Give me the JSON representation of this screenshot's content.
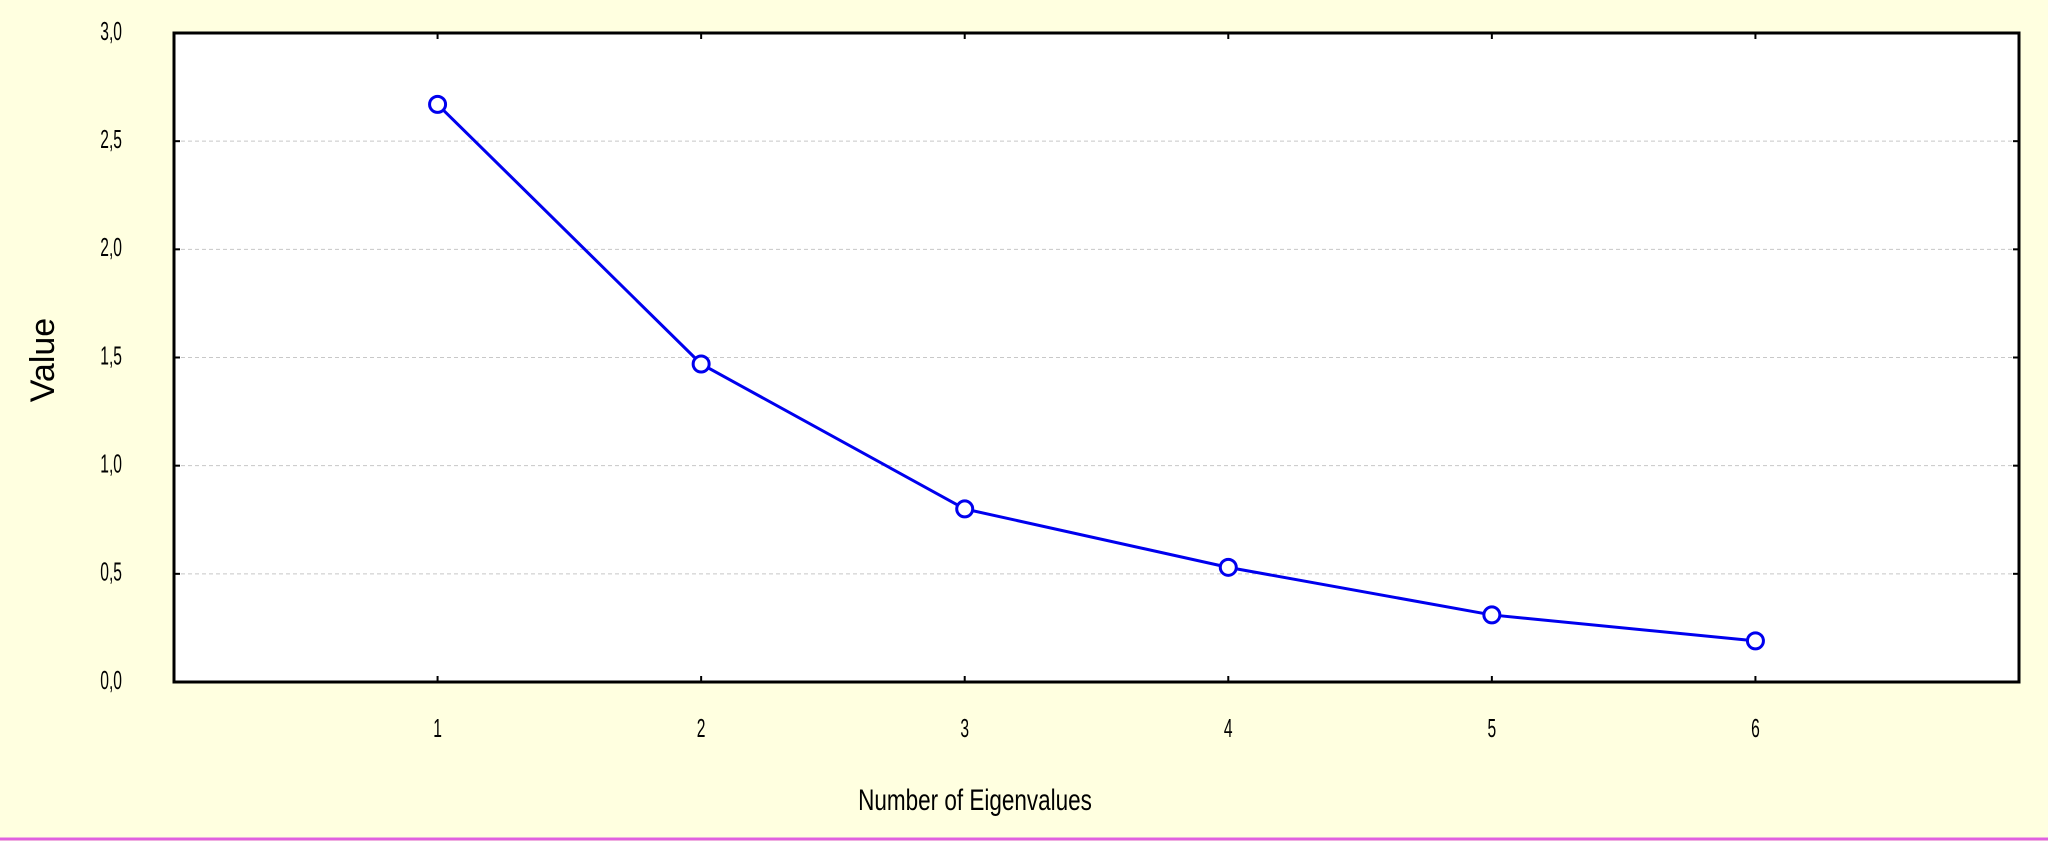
{
  "chart_data": {
    "type": "line",
    "y_label": "Value",
    "x_label": "Number of Eigenvalues",
    "x": [
      1,
      2,
      3,
      4,
      5,
      6
    ],
    "series": [
      {
        "color": "#0000ee",
        "values": [
          2.67,
          1.47,
          0.8,
          0.53,
          0.31,
          0.19
        ]
      }
    ],
    "xlim": [
      0,
      7
    ],
    "xticks": [
      1,
      2,
      3,
      4,
      5,
      6
    ],
    "ylim": [
      0,
      3
    ],
    "yticks": [
      {
        "value": 0,
        "label": "0,0"
      },
      {
        "value": 0.5,
        "label": "0,5"
      },
      {
        "value": 1,
        "label": "1,0"
      },
      {
        "value": 1.5,
        "label": "1,5"
      },
      {
        "value": 2,
        "label": "2,0"
      },
      {
        "value": 2.5,
        "label": "2,5"
      },
      {
        "value": 3,
        "label": "3,0"
      }
    ],
    "grid": true
  }
}
